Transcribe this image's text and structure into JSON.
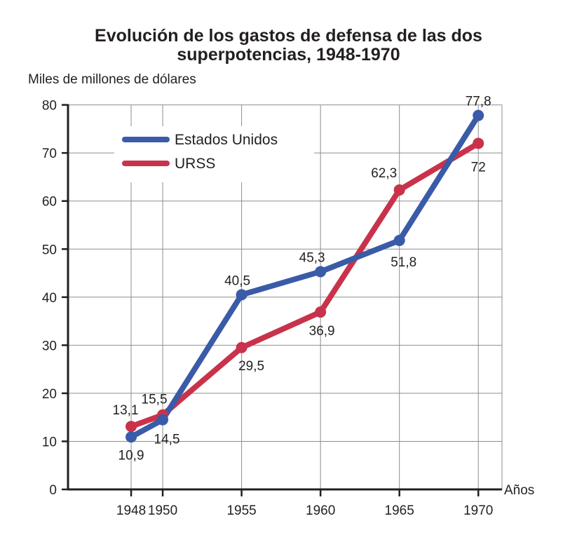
{
  "chart_data": {
    "type": "line",
    "title_line1": "Evolución de los gastos de defensa de las dos",
    "title_line2": "superpotencias, 1948-1970",
    "ylabel": "Miles de millones de dólares",
    "xlabel": "Años",
    "x": [
      1948,
      1950,
      1955,
      1960,
      1965,
      1970
    ],
    "x_tick_labels": [
      "1948",
      "1950",
      "1955",
      "1960",
      "1965",
      "1970"
    ],
    "ylim": [
      0,
      80
    ],
    "y_ticks": [
      0,
      10,
      20,
      30,
      40,
      50,
      60,
      70,
      80
    ],
    "y_tick_labels": [
      "0",
      "10",
      "20",
      "30",
      "40",
      "50",
      "60",
      "70",
      "80"
    ],
    "grid": true,
    "legend_position": "top-left",
    "series": [
      {
        "name": "Estados Unidos",
        "color": "#3a5ba7",
        "values": [
          10.9,
          14.5,
          40.5,
          45.3,
          51.8,
          77.8
        ],
        "labels": [
          "10,9",
          "14,5",
          "40,5",
          "45,3",
          "51,8",
          "77,8"
        ]
      },
      {
        "name": "URSS",
        "color": "#c8334b",
        "values": [
          13.1,
          15.5,
          29.5,
          36.9,
          62.3,
          72
        ],
        "labels": [
          "13,1",
          "15,5",
          "29,5",
          "36,9",
          "62,3",
          "72"
        ]
      }
    ]
  }
}
